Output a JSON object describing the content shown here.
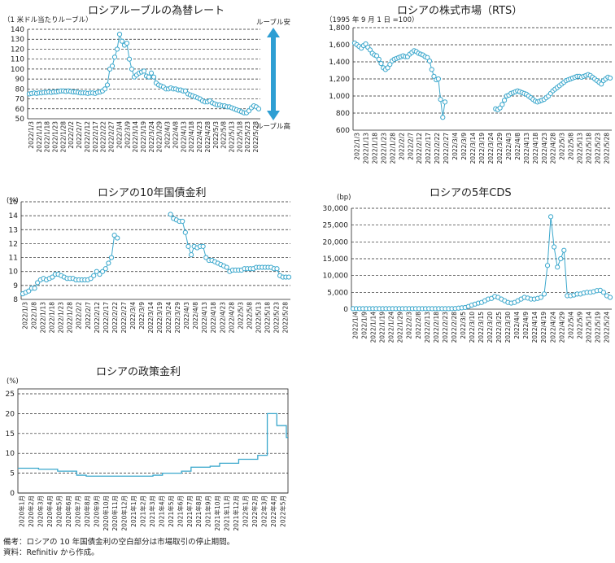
{
  "notes": {
    "note1": "備考：ロシアの 10 年国債金利の空白部分は市場取引の停止期間。",
    "note2": "資料：Refinitiv から作成。"
  },
  "colors": {
    "series": "#3aa7cc",
    "axis": "#222222",
    "grid": "#222222",
    "arrow": "#2e9ed3"
  },
  "chart_data": [
    {
      "type": "line",
      "title": "ロシアルーブルの為替レート",
      "unit_label": "（1 米ドル当たりルーブル）",
      "ylim": [
        50,
        140
      ],
      "yticks": [
        50,
        60,
        70,
        80,
        90,
        100,
        110,
        120,
        130,
        140
      ],
      "grid": true,
      "markers": true,
      "annotations": {
        "top": "ルーブル安",
        "bottom": "ルーブル高"
      },
      "x_tick_labels": [
        "2022/1/3",
        "2022/1/13",
        "2022/1/18",
        "2022/1/23",
        "2022/1/28",
        "2022/2/2",
        "2022/2/7",
        "2022/2/12",
        "2022/2/17",
        "2022/2/22",
        "2022/2/27",
        "2022/3/4",
        "2022/3/9",
        "2022/3/14",
        "2022/3/19",
        "2022/3/24",
        "2022/3/29",
        "2022/4/3",
        "2022/4/8",
        "2022/4/13",
        "2022/4/18",
        "2022/4/23",
        "2022/4/28",
        "2022/5/3",
        "2022/5/8",
        "2022/5/13",
        "2022/5/18",
        "2022/5/23",
        "2022/5/28"
      ],
      "values": [
        75,
        75.5,
        76,
        75.5,
        76,
        76,
        76.5,
        76.5,
        77,
        76.5,
        77,
        77,
        77.5,
        78,
        78,
        77.5,
        78,
        77.5,
        77,
        77,
        76.5,
        76,
        76,
        76,
        75.5,
        76,
        76,
        75.5,
        76.5,
        77,
        78,
        80,
        84,
        100,
        103,
        112,
        120,
        135,
        128,
        124,
        126,
        110,
        100,
        92,
        94,
        96,
        97,
        98,
        93,
        92,
        96,
        92,
        86,
        84,
        83,
        82,
        80,
        80,
        81,
        80,
        80,
        79,
        79,
        78,
        78,
        75,
        74,
        73,
        72,
        71,
        70,
        68,
        67,
        67,
        68,
        66,
        65,
        64,
        64,
        63,
        63,
        62,
        62,
        61,
        60,
        59,
        58,
        57,
        56,
        56,
        58,
        61,
        63,
        62,
        60
      ]
    },
    {
      "type": "line",
      "title": "ロシアの株式市場（RTS）",
      "unit_label": "（1995 年 9 月 1 日 =100）",
      "ylim": [
        600,
        1800
      ],
      "yticks": [
        600,
        800,
        1000,
        1200,
        1400,
        1600,
        1800
      ],
      "grid": true,
      "markers": true,
      "x_tick_labels": [
        "2022/1/3",
        "2022/1/13",
        "2022/1/18",
        "2022/1/23",
        "2022/1/28",
        "2022/2/2",
        "2022/2/7",
        "2022/2/12",
        "2022/2/17",
        "2022/2/22",
        "2022/2/27",
        "2022/3/4",
        "2022/3/9",
        "2022/3/14",
        "2022/3/19",
        "2022/3/24",
        "2022/3/29",
        "2022/4/3",
        "2022/4/8",
        "2022/4/13",
        "2022/4/18",
        "2022/4/23",
        "2022/4/28",
        "2022/5/3",
        "2022/5/8",
        "2022/5/13",
        "2022/5/18",
        "2022/5/23",
        "2022/5/28"
      ],
      "values": [
        1620,
        1600,
        1580,
        1560,
        1590,
        1610,
        1570,
        1540,
        1500,
        1480,
        1470,
        1430,
        1380,
        1330,
        1310,
        1330,
        1370,
        1410,
        1430,
        1440,
        1450,
        1460,
        1470,
        1460,
        1460,
        1490,
        1510,
        1530,
        1520,
        1500,
        1490,
        1480,
        1460,
        1450,
        1410,
        1310,
        1230,
        1190,
        1200,
        960,
        750,
        930,
        null,
        null,
        null,
        null,
        null,
        null,
        null,
        null,
        null,
        null,
        null,
        null,
        null,
        null,
        null,
        null,
        null,
        null,
        null,
        null,
        null,
        null,
        850,
        840,
        860,
        900,
        950,
        1000,
        1010,
        1030,
        1040,
        1050,
        1060,
        1050,
        1040,
        1030,
        1020,
        1000,
        980,
        960,
        940,
        930,
        940,
        950,
        960,
        980,
        1000,
        1030,
        1060,
        1080,
        1100,
        1120,
        1140,
        1160,
        1180,
        1190,
        1200,
        1210,
        1220,
        1230,
        1230,
        1220,
        1230,
        1240,
        1250,
        1240,
        1220,
        1200,
        1180,
        1160,
        1140,
        1180,
        1200,
        1220,
        1210
      ]
    },
    {
      "type": "line",
      "title": "ロシアの10年国債金利",
      "unit_label": "(%)",
      "ylim": [
        8,
        15
      ],
      "yticks": [
        8,
        9,
        10,
        11,
        12,
        13,
        14,
        15
      ],
      "grid": true,
      "markers": true,
      "x_tick_labels": [
        "2022/1/3",
        "2022/1/8",
        "2022/1/13",
        "2022/1/18",
        "2022/1/23",
        "2022/1/28",
        "2022/2/2",
        "2022/2/7",
        "2022/2/12",
        "2022/2/17",
        "2022/2/22",
        "2022/2/27",
        "2022/3/4",
        "2022/3/9",
        "2022/3/14",
        "2022/3/19",
        "2022/3/24",
        "2022/3/29",
        "2022/4/3",
        "2022/4/8",
        "2022/4/13",
        "2022/4/18",
        "2022/4/23",
        "2022/4/28",
        "2022/5/3",
        "2022/5/8",
        "2022/5/13",
        "2022/5/18",
        "2022/5/23",
        "2022/5/28"
      ],
      "values": [
        8.4,
        8.5,
        8.6,
        8.8,
        8.8,
        9.2,
        9.4,
        9.5,
        9.4,
        9.5,
        9.6,
        9.8,
        9.8,
        9.7,
        9.6,
        9.5,
        9.5,
        9.5,
        9.4,
        9.4,
        9.4,
        9.4,
        9.4,
        9.5,
        9.7,
        10,
        9.8,
        10,
        10.2,
        10.6,
        11,
        12.6,
        12.4,
        null,
        null,
        null,
        null,
        null,
        null,
        null,
        null,
        null,
        null,
        null,
        null,
        null,
        null,
        null,
        null,
        null,
        14.1,
        13.8,
        13.7,
        13.6,
        13.6,
        12.8,
        11.8,
        11.2,
        11.8,
        11.7,
        11.8,
        11.8,
        11,
        10.8,
        10.8,
        10.7,
        10.6,
        10.5,
        10.4,
        10.3,
        10.0,
        10.1,
        10.1,
        10.1,
        10.1,
        10.2,
        10.2,
        10.2,
        10.2,
        10.3,
        10.3,
        10.3,
        10.3,
        10.3,
        10.3,
        10.2,
        10.2,
        9.7,
        9.6,
        9.6,
        9.6
      ]
    },
    {
      "type": "line",
      "title": "ロシアの5年CDS",
      "unit_label": "(bp)",
      "ylim": [
        0,
        30000
      ],
      "yticks": [
        0,
        5000,
        10000,
        15000,
        20000,
        25000,
        30000
      ],
      "grid": true,
      "markers": true,
      "x_tick_labels": [
        "2022/1/4",
        "2022/1/9",
        "2022/1/14",
        "2022/1/19",
        "2022/1/24",
        "2022/1/29",
        "2022/2/3",
        "2022/2/8",
        "2022/2/13",
        "2022/2/18",
        "2022/2/23",
        "2022/2/28",
        "2022/3/5",
        "2022/3/10",
        "2022/3/15",
        "2022/3/20",
        "2022/3/25",
        "2022/3/30",
        "2022/4/4",
        "2022/4/9",
        "2022/4/14",
        "2022/4/19",
        "2022/4/24",
        "2022/4/29",
        "2022/5/4",
        "2022/5/9",
        "2022/5/14",
        "2022/5/19",
        "2022/5/24"
      ],
      "values": [
        150,
        150,
        150,
        150,
        150,
        150,
        150,
        150,
        150,
        150,
        150,
        150,
        150,
        150,
        150,
        150,
        150,
        150,
        150,
        150,
        150,
        150,
        150,
        150,
        150,
        150,
        150,
        150,
        150,
        150,
        150,
        200,
        300,
        400,
        500,
        800,
        1200,
        1500,
        1800,
        2000,
        2500,
        3000,
        3200,
        3800,
        3500,
        3000,
        2500,
        2000,
        1800,
        2000,
        2500,
        3000,
        3500,
        3300,
        3000,
        3000,
        3200,
        3500,
        4500,
        13000,
        27500,
        18500,
        12500,
        15000,
        17500,
        4000,
        4000,
        4200,
        4500,
        4500,
        4800,
        5000,
        5000,
        5200,
        5500,
        5600,
        5000,
        4000,
        3500
      ]
    },
    {
      "type": "line",
      "title": "ロシアの政策金利",
      "unit_label": "(%)",
      "ylim": [
        0,
        25
      ],
      "yticks": [
        0,
        5,
        10,
        15,
        20,
        25
      ],
      "grid": true,
      "markers": false,
      "x_tick_labels": [
        "2020年1月",
        "2020年2月",
        "2020年3月",
        "2020年4月",
        "2020年5月",
        "2020年6月",
        "2020年7月",
        "2020年8月",
        "2020年9月",
        "2020年10月",
        "2020年11月",
        "2020年12月",
        "2021年1月",
        "2021年2月",
        "2021年3月",
        "2021年4月",
        "2021年5月",
        "2021年6月",
        "2021年7月",
        "2021年8月",
        "2021年9月",
        "2021年10月",
        "2021年11月",
        "2021年12月",
        "2022年1月",
        "2022年2月",
        "2022年3月",
        "2022年4月",
        "2022年5月"
      ],
      "values": [
        6.25,
        6.25,
        6.0,
        6.0,
        5.5,
        5.5,
        4.5,
        4.25,
        4.25,
        4.25,
        4.25,
        4.25,
        4.25,
        4.25,
        4.5,
        5.0,
        5.0,
        5.5,
        6.5,
        6.5,
        6.75,
        7.5,
        7.5,
        8.5,
        8.5,
        9.5,
        20,
        17,
        14
      ]
    }
  ]
}
